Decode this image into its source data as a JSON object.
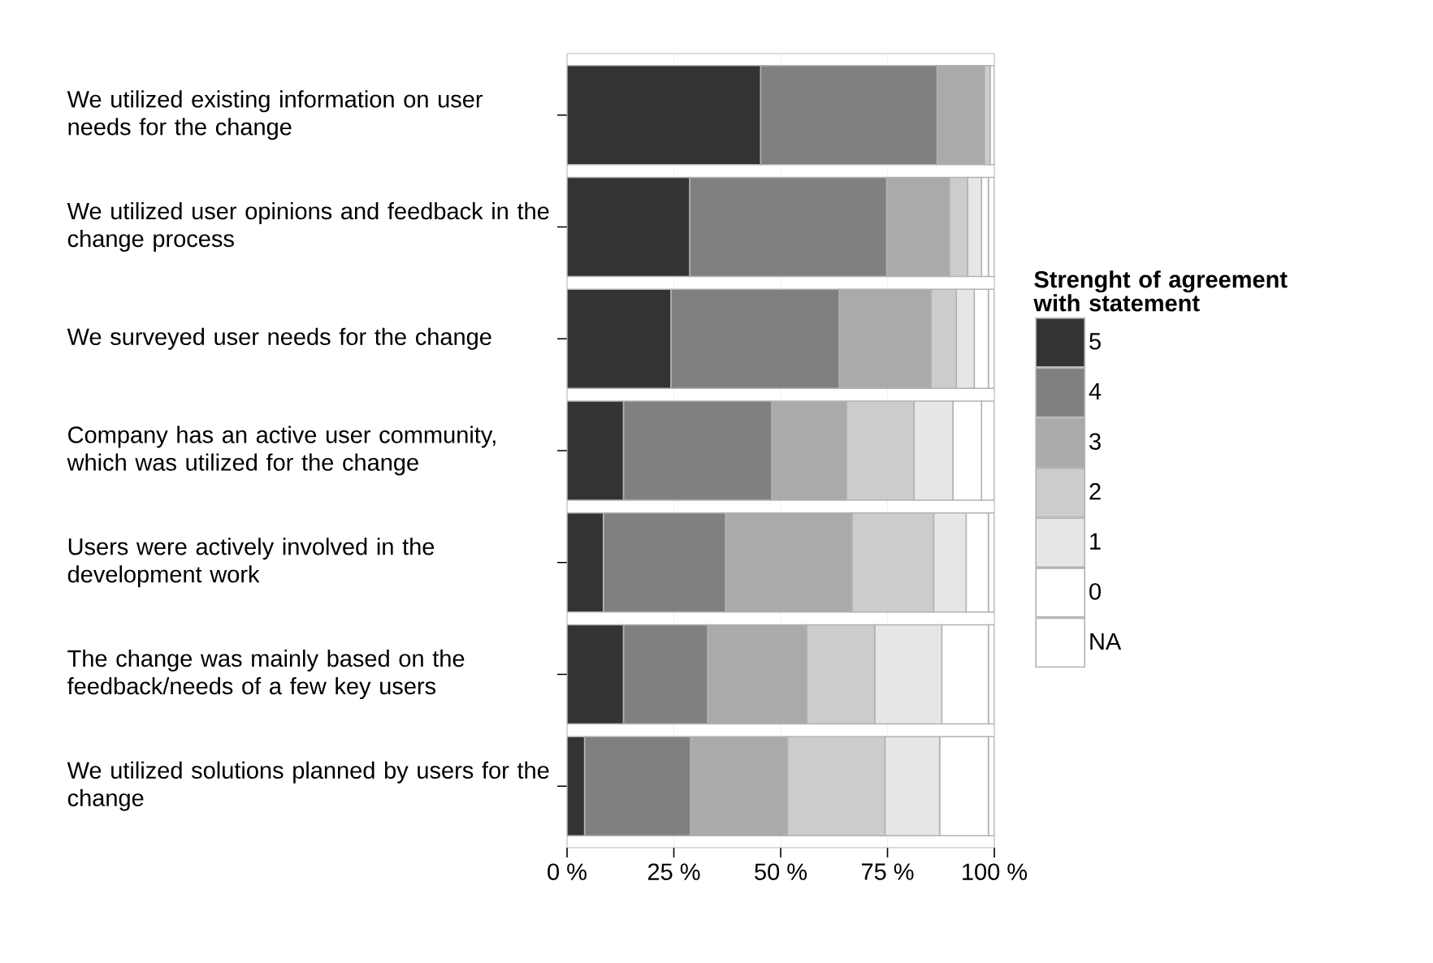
{
  "chart_data": {
    "type": "bar",
    "orientation": "horizontal",
    "stacked": true,
    "categories": [
      "We utilized existing information on user needs for the change",
      "We utilized user opinions and feedback in the change process",
      "We surveyed user needs for the change",
      "Company has an active user community, which was utilized for the change",
      "Users were actively involved in the development work",
      "The change was mainly based on the feedback/needs of a few key users",
      "We utilized solutions planned by users for the change"
    ],
    "series": [
      {
        "name": "5",
        "color": "#333333",
        "values": [
          45.3,
          28.7,
          24.3,
          13.2,
          8.5,
          13.2,
          4.1
        ]
      },
      {
        "name": "4",
        "color": "#808080",
        "values": [
          41.3,
          46.1,
          39.4,
          34.7,
          28.6,
          19.7,
          24.8
        ]
      },
      {
        "name": "3",
        "color": "#aaaaaa",
        "values": [
          11.1,
          14.7,
          21.5,
          17.5,
          29.6,
          23.2,
          22.7
        ]
      },
      {
        "name": "2",
        "color": "#cccccc",
        "values": [
          1.3,
          4.2,
          5.9,
          15.8,
          19.1,
          15.9,
          22.8
        ]
      },
      {
        "name": "1",
        "color": "#e6e6e6",
        "values": [
          0,
          3.3,
          4.2,
          9.1,
          7.6,
          15.7,
          12.8
        ]
      },
      {
        "name": "0",
        "color": "#ffffff",
        "values": [
          0,
          1.6,
          3.3,
          6.7,
          5.2,
          10.9,
          11.4
        ]
      },
      {
        "name": "NA",
        "color": "#ffffff",
        "values": [
          1.0,
          1.4,
          1.4,
          3.0,
          1.4,
          1.4,
          1.4
        ]
      }
    ],
    "legend_title": "Strenght of agreement with statement",
    "legend": "right",
    "grid": "x",
    "xlim": [
      0,
      100
    ],
    "xticks": [
      {
        "value": 0,
        "label": "0 %"
      },
      {
        "value": 25,
        "label": "25 %"
      },
      {
        "value": 50,
        "label": "50 %"
      },
      {
        "value": 75,
        "label": "75 %"
      },
      {
        "value": 100,
        "label": "100 %"
      }
    ]
  }
}
